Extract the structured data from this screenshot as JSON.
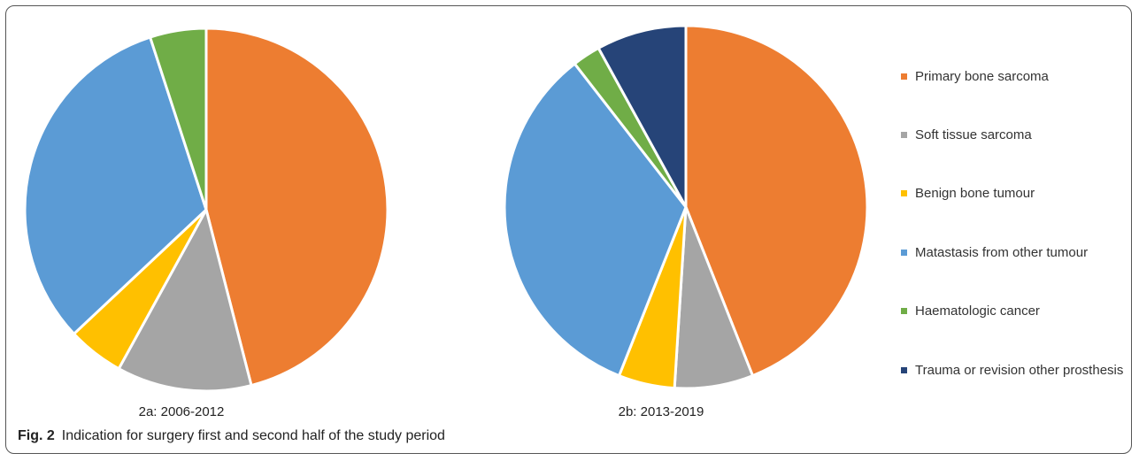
{
  "chart_data": {
    "type": "pie",
    "categories": [
      "Primary bone sarcoma",
      "Soft tissue sarcoma",
      "Benign bone tumour",
      "Matastasis from other tumour",
      "Haematologic cancer",
      "Trauma or revision other prosthesis"
    ],
    "colors": [
      "#ED7D31",
      "#A5A5A5",
      "#FFC000",
      "#5B9BD5",
      "#70AD47",
      "#264478"
    ],
    "series": [
      {
        "name": "2a: 2006-2012",
        "values": [
          46,
          12,
          5,
          32,
          5,
          null
        ]
      },
      {
        "name": "2b: 2013-2019",
        "values": [
          44,
          7,
          5,
          33.5,
          2.5,
          8
        ]
      }
    ]
  },
  "caption": {
    "label": "Fig. 2",
    "text": "Indication for surgery first and second half of the study period"
  }
}
